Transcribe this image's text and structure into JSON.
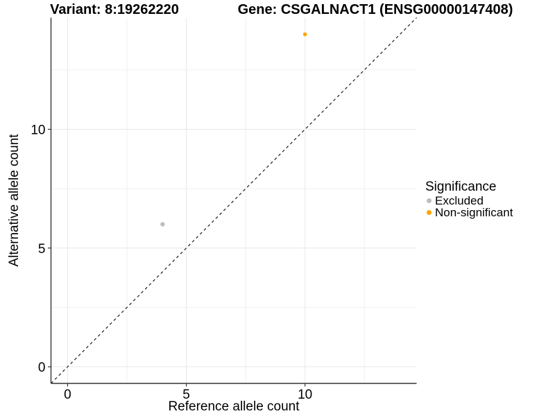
{
  "titles": {
    "variant": "Variant: 8:19262220",
    "gene": "Gene: CSGALNACT1 (ENSG00000147408)"
  },
  "chart_data": {
    "type": "scatter",
    "xlabel": "Reference allele count",
    "ylabel": "Alternative allele count",
    "xlim": [
      -0.7,
      14.7
    ],
    "ylim": [
      -0.7,
      14.7
    ],
    "x_major_ticks": [
      0,
      5,
      10
    ],
    "y_major_ticks": [
      0,
      5,
      10
    ],
    "x_minor_ticks": [
      2.5,
      7.5,
      12.5
    ],
    "y_minor_ticks": [
      2.5,
      7.5,
      12.5
    ],
    "grid": true,
    "legend_position": "right",
    "identity_line": {
      "type": "abline",
      "slope": 1,
      "intercept": 0,
      "style": "dashed",
      "color": "#1a1a1a"
    },
    "series": [
      {
        "name": "Excluded",
        "color": "#bebebe",
        "point_radius": 3.2,
        "points": [
          {
            "x": 4,
            "y": 6
          }
        ]
      },
      {
        "name": "Non-significant",
        "color": "#ffa500",
        "point_radius": 2.8,
        "points": [
          {
            "x": 10,
            "y": 14
          }
        ]
      }
    ],
    "legend": {
      "title": "Significance"
    },
    "colors": {
      "grid_major": "#e8e8e8",
      "grid_minor": "#f0f0f0",
      "axis_line": "#333333",
      "tick_mark": "#333333"
    }
  }
}
